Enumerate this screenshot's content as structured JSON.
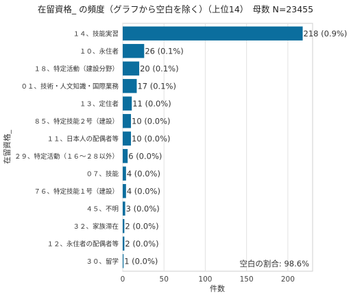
{
  "chart_data": {
    "type": "bar",
    "orientation": "horizontal",
    "title": "在留資格_ の頻度（グラフから空白を除く）（上位14）　母数 N=23455",
    "xlabel": "件数",
    "ylabel": "在留資格_",
    "xlim": [
      0,
      230
    ],
    "xticks": [
      "0",
      "50",
      "100",
      "150",
      "200"
    ],
    "grid": true,
    "bar_color": "#0b6e9e",
    "categories": [
      "１４、技能実習",
      "１０、永住者",
      "１８、特定活動（建設分野）",
      "０１、技術・人文知識・国際業務",
      "１３、定住者",
      "８５、特定技能２号（建設）",
      "１１、日本人の配偶者等",
      "２９、特定活動（１６～２８以外）",
      "０７、技能",
      "７６、特定技能１号（建設）",
      "４５、不明",
      "３２、家族滞在",
      "１２、永住者の配偶者等",
      "３０、留学"
    ],
    "values": [
      218,
      26,
      20,
      17,
      11,
      10,
      10,
      6,
      4,
      4,
      3,
      2,
      2,
      1
    ],
    "data_labels": [
      "218 (0.9%)",
      "26 (0.1%)",
      "20 (0.1%)",
      "17 (0.1%)",
      "11 (0.0%)",
      "10 (0.0%)",
      "10 (0.0%)",
      "6 (0.0%)",
      "4 (0.0%)",
      "4 (0.0%)",
      "3 (0.0%)",
      "2 (0.0%)",
      "2 (0.0%)",
      "1 (0.0%)"
    ],
    "annotation": "空白の割合: 98.6%"
  }
}
